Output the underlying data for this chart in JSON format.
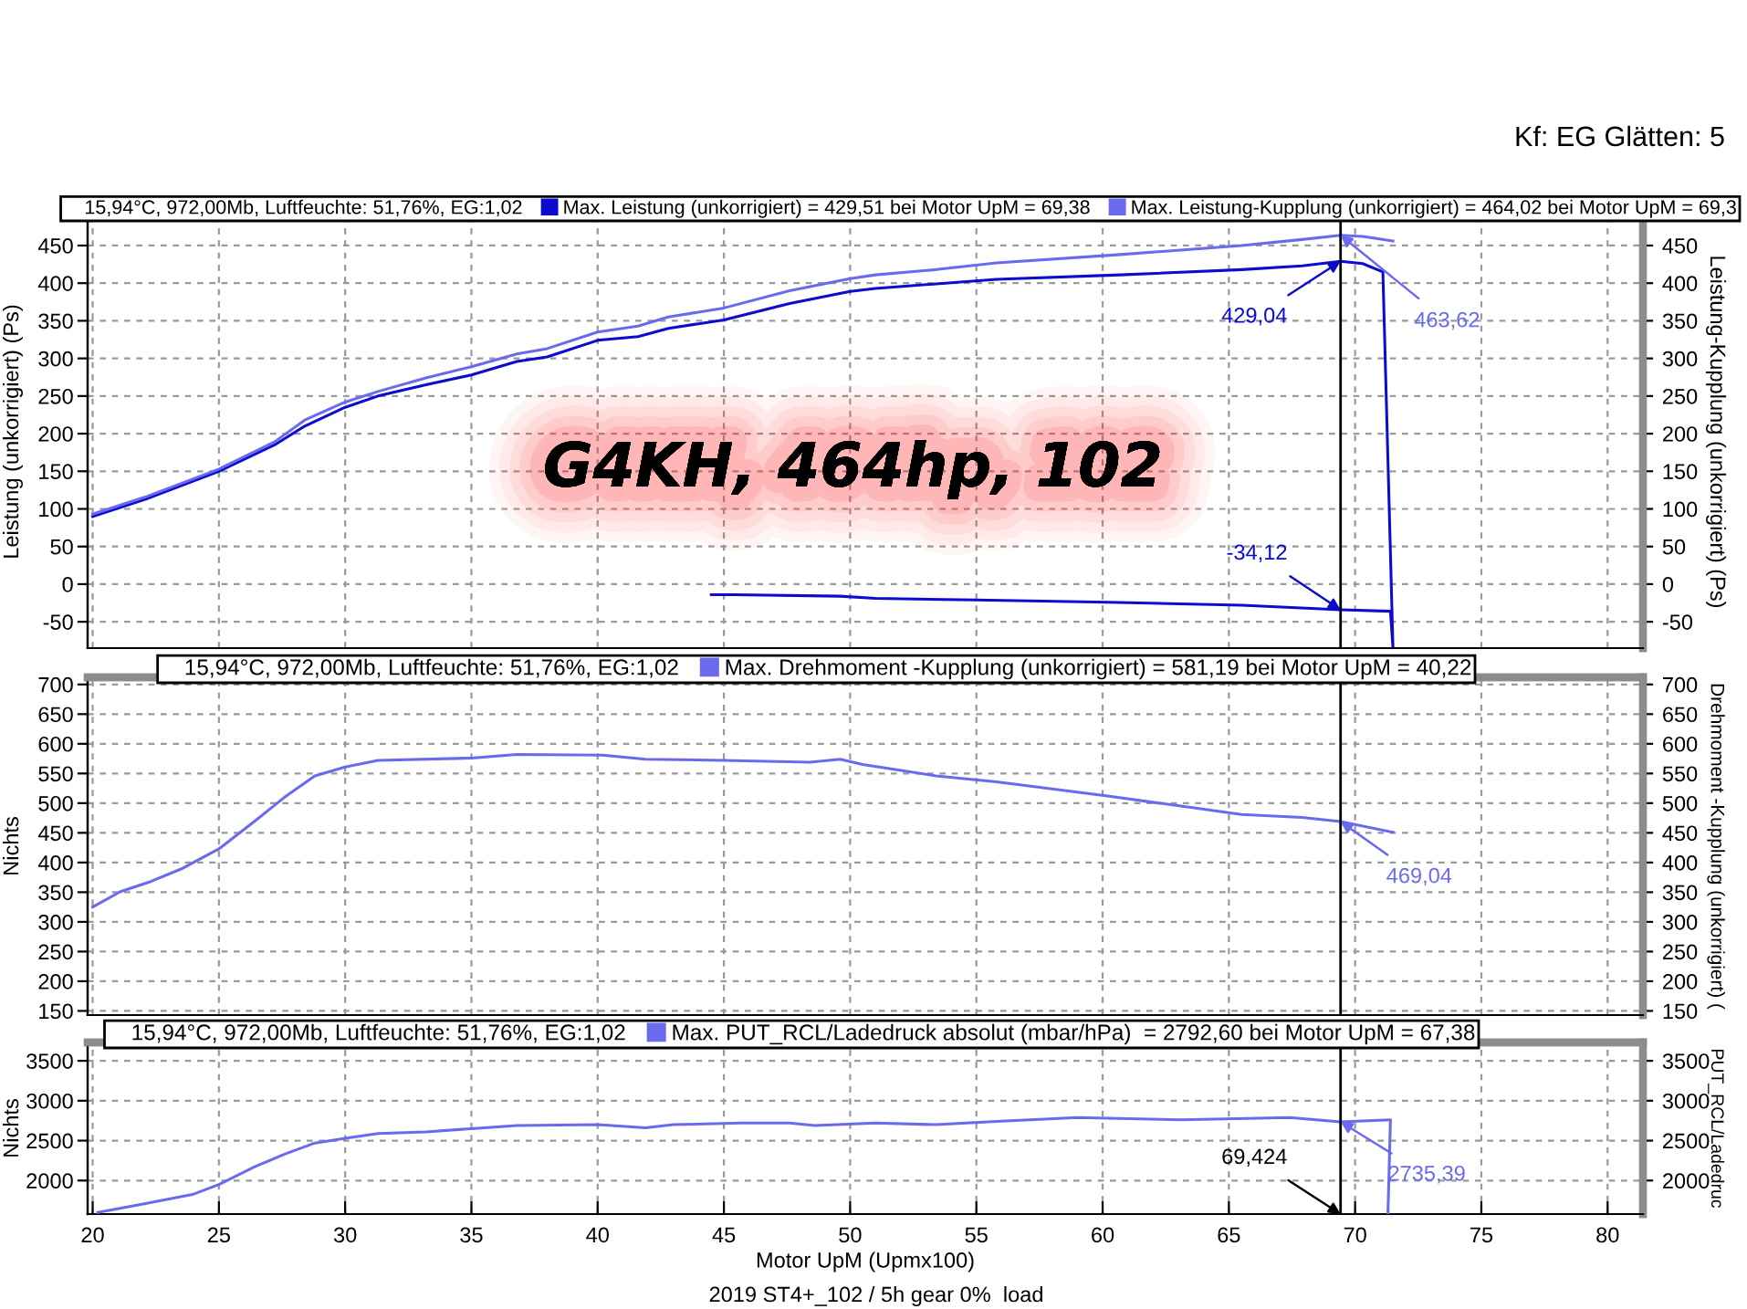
{
  "chart_data": [
    {
      "type": "line",
      "title": "G4KH, 464hp, 102",
      "ylabel": "Leistung (unkorrigiert) (Ps)",
      "y2label": "Leistung-Kupplung (unkorrigiert) (Ps)",
      "legend_title": "15,94°C, 972,00Mb, Luftfeuchte: 51,76%, EG:1,02",
      "legend": "top right",
      "grid": true,
      "tick_labels": "y",
      "xlim": [
        19.8,
        81.4
      ],
      "xticks": [
        20,
        25,
        30,
        35,
        40,
        45,
        50,
        55,
        60,
        65,
        70,
        75,
        80
      ],
      "ylim": [
        -85,
        490
      ],
      "yticks": [
        -50,
        0,
        50,
        100,
        150,
        200,
        250,
        300,
        350,
        400,
        450
      ],
      "y2lim": [
        -85,
        490
      ],
      "y2ticks": [
        -50,
        0,
        50,
        100,
        150,
        200,
        250,
        300,
        350,
        400,
        450
      ],
      "series": [
        {
          "name": "Max. Leistung (unkorrigiert) = 429,51 bei Motor UpM = 69,38",
          "color": "#0c0cd0",
          "x": [
            20.0,
            22.1,
            25.0,
            27.2,
            28.4,
            30.0,
            31.3,
            33.2,
            35.0,
            36.8,
            38.0,
            40.0,
            41.6,
            42.8,
            45.0,
            47.6,
            50.0,
            51.0,
            55.8,
            60.7,
            65.5,
            67.9,
            69.424,
            70.3,
            71.1,
            71.5,
            71.4,
            69.424,
            65.5,
            60.2,
            55.0,
            51.0,
            49.6,
            45.4,
            44.5
          ],
          "values": [
            90,
            113,
            150,
            185,
            210,
            235,
            250,
            265,
            278,
            296,
            302,
            324,
            329,
            340,
            351,
            373,
            389,
            393,
            405,
            411,
            418,
            423,
            429.04,
            426,
            415,
            -85,
            -36,
            -34.12,
            -28,
            -24,
            -21,
            -19,
            -16,
            -14,
            -14
          ],
          "value_labels": [
            null,
            null,
            null,
            null,
            null,
            null,
            null,
            null,
            null,
            null,
            null,
            null,
            null,
            null,
            null,
            null,
            null,
            null,
            null,
            null,
            null,
            null,
            "429,04",
            null,
            null,
            null,
            null,
            "-34,12",
            null,
            null,
            null,
            null,
            null,
            null,
            null
          ]
        },
        {
          "name": "Max. Leistung-Kupplung (unkorrigiert) = 464,02 bei Motor UpM = 69,3",
          "color": "#6a6aee",
          "axis": "y2",
          "x": [
            20.0,
            22.1,
            25.0,
            27.2,
            28.4,
            30.0,
            31.3,
            33.2,
            35.0,
            36.8,
            38.0,
            40.0,
            41.6,
            42.8,
            45.0,
            47.6,
            50.0,
            51.0,
            53.4,
            55.8,
            60.7,
            65.5,
            67.9,
            69.424,
            70.3,
            71.5
          ],
          "values": [
            93,
            116,
            153,
            189,
            218,
            242,
            256,
            274,
            289,
            306,
            313,
            335,
            343,
            355,
            367,
            390,
            406,
            411,
            418,
            427,
            438,
            450,
            458,
            463.62,
            462,
            456
          ],
          "value_labels": [
            null,
            null,
            null,
            null,
            null,
            null,
            null,
            null,
            null,
            null,
            null,
            null,
            null,
            null,
            null,
            null,
            null,
            null,
            null,
            null,
            null,
            null,
            null,
            "463,62",
            null,
            null
          ]
        }
      ],
      "ref_lines": [
        {
          "axis": "x",
          "value": 69.424,
          "color": "#000000"
        }
      ],
      "annotations": [
        "Kf: EG Glätten: 5"
      ]
    },
    {
      "type": "line",
      "ylabel": "Nichts",
      "y2label": "Drehmoment -Kupplung (unkorrigiert) (",
      "legend_title": "15,94°C, 972,00Mb, Luftfeuchte: 51,76%, EG:1,02",
      "legend": "top right",
      "grid": true,
      "tick_labels": "y",
      "xlim": [
        19.8,
        81.4
      ],
      "xticks": [
        20,
        25,
        30,
        35,
        40,
        45,
        50,
        55,
        60,
        65,
        70,
        75,
        80
      ],
      "ylim": [
        143,
        712
      ],
      "yticks": [
        150,
        200,
        250,
        300,
        350,
        400,
        450,
        500,
        550,
        600,
        650,
        700
      ],
      "y2lim": [
        143,
        712
      ],
      "y2ticks": [
        150,
        200,
        250,
        300,
        350,
        400,
        450,
        500,
        550,
        600,
        650,
        700
      ],
      "series": [
        {
          "name": "Max. Drehmoment -Kupplung (unkorrigiert) = 581,19 bei Motor UpM = 40,22",
          "color": "#6a6aee",
          "axis": "y2",
          "x": [
            20.0,
            21.1,
            22.3,
            23.5,
            25.0,
            26.4,
            27.6,
            28.8,
            30.0,
            31.3,
            35.0,
            36.8,
            40.2,
            41.9,
            45.0,
            48.4,
            49.6,
            50.5,
            53.4,
            55.8,
            60.2,
            63.1,
            65.5,
            67.9,
            69.424,
            71.5
          ],
          "values": [
            325,
            351,
            368,
            389,
            423,
            469,
            510,
            546,
            561,
            572,
            576,
            582,
            581,
            574,
            572,
            569,
            574,
            565,
            546,
            536,
            512,
            495,
            481,
            476,
            469.04,
            451
          ],
          "value_labels": [
            null,
            null,
            null,
            null,
            null,
            null,
            null,
            null,
            null,
            null,
            null,
            null,
            null,
            null,
            null,
            null,
            null,
            null,
            null,
            null,
            null,
            null,
            null,
            null,
            "469,04",
            null
          ]
        }
      ],
      "ref_lines": [
        {
          "axis": "x",
          "value": 69.424,
          "color": "#000000"
        }
      ]
    },
    {
      "type": "line",
      "xlabel": "Motor UpM (Upmx100)",
      "ylabel": "Nichts",
      "y2label": "PUT_RCL/Ladedruc",
      "legend_title": "15,94°C, 972,00Mb, Luftfeuchte: 51,76%, EG:1,02",
      "legend": "top right",
      "grid": true,
      "xlim": [
        19.8,
        81.4
      ],
      "xticks": [
        20,
        25,
        30,
        35,
        40,
        45,
        50,
        55,
        60,
        65,
        70,
        75,
        80
      ],
      "ylim": [
        1580,
        3730
      ],
      "yticks": [
        2000,
        2500,
        3000,
        3500
      ],
      "y2lim": [
        1580,
        3730
      ],
      "y2ticks": [
        2000,
        2500,
        3000,
        3500
      ],
      "series": [
        {
          "name": "Max. PUT_RCL/Ladedruck absolut (mbar/hPa)  = 2792,60 bei Motor UpM = 67,38",
          "color": "#6a6aee",
          "axis": "y2",
          "x": [
            20.2,
            21.9,
            24.0,
            25.0,
            26.4,
            27.6,
            28.8,
            30.0,
            31.3,
            33.2,
            35.0,
            36.8,
            40.0,
            41.9,
            43.0,
            45.7,
            47.6,
            48.6,
            51.0,
            53.4,
            55.8,
            59.0,
            63.1,
            67.4,
            69.424,
            71.4,
            71.3
          ],
          "values": [
            1600,
            1700,
            1830,
            1950,
            2170,
            2330,
            2470,
            2530,
            2590,
            2610,
            2650,
            2690,
            2700,
            2660,
            2700,
            2720,
            2720,
            2690,
            2720,
            2700,
            2740,
            2790,
            2760,
            2790,
            2735.39,
            2760,
            1580
          ],
          "value_labels": [
            null,
            null,
            null,
            null,
            null,
            null,
            null,
            null,
            null,
            null,
            null,
            null,
            null,
            null,
            null,
            null,
            null,
            null,
            null,
            null,
            null,
            null,
            null,
            null,
            "2735,39",
            null,
            null
          ]
        }
      ],
      "ref_lines": [
        {
          "axis": "x",
          "value": 69.424,
          "color": "#000000",
          "label": "69,424"
        }
      ],
      "annotations": [
        "2019 ST4+_102 / 5h gear 0%  load"
      ]
    }
  ]
}
